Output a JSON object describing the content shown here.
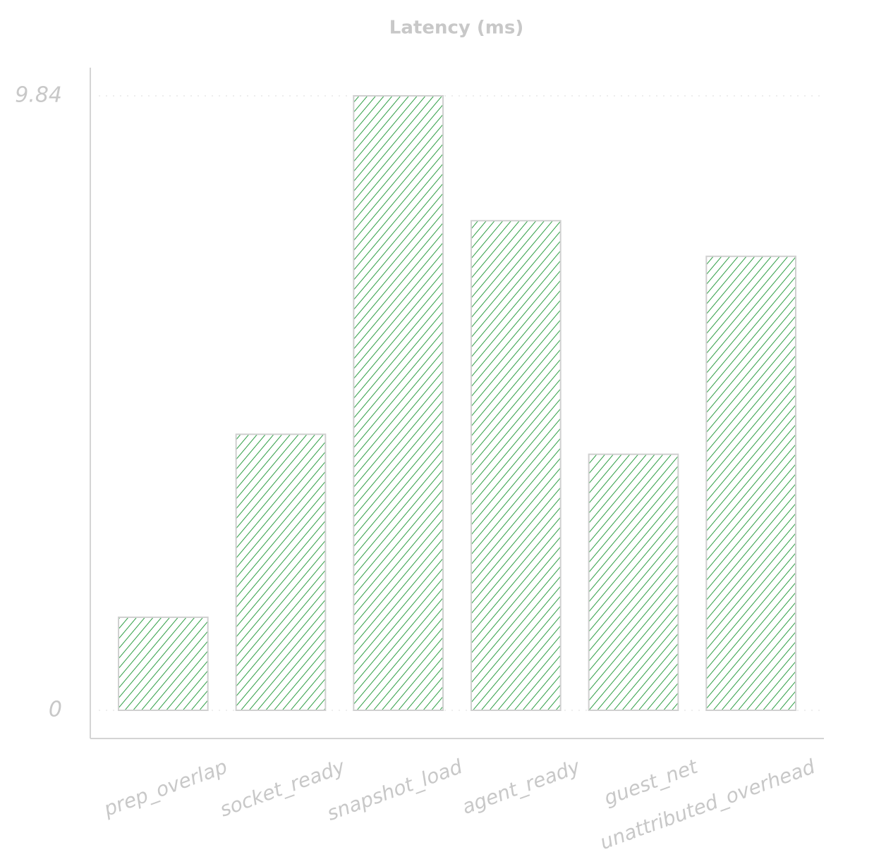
{
  "chart_data": {
    "type": "bar",
    "title": "Latency (ms)",
    "categories": [
      "prep_overlap",
      "socket_ready",
      "snapshot_load",
      "agent_ready",
      "guest_net",
      "unattributed_overhead"
    ],
    "values": [
      1.49,
      4.42,
      9.84,
      7.84,
      4.1,
      7.27
    ],
    "color": "#2e9e44",
    "ylim": [
      0,
      9.84
    ],
    "yticks": [
      0,
      9.84
    ],
    "grid": true
  }
}
